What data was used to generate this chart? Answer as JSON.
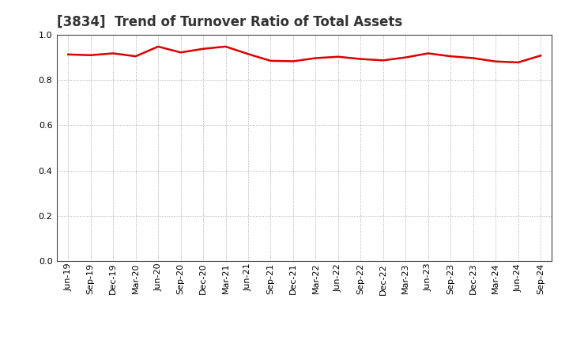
{
  "title": "[3834]  Trend of Turnover Ratio of Total Assets",
  "labels": [
    "Jun-19",
    "Sep-19",
    "Dec-19",
    "Mar-20",
    "Jun-20",
    "Sep-20",
    "Dec-20",
    "Mar-21",
    "Jun-21",
    "Sep-21",
    "Dec-21",
    "Mar-22",
    "Jun-22",
    "Sep-22",
    "Dec-22",
    "Mar-23",
    "Jun-23",
    "Sep-23",
    "Dec-23",
    "Mar-24",
    "Jun-24",
    "Sep-24"
  ],
  "values": [
    0.913,
    0.91,
    0.918,
    0.905,
    0.948,
    0.922,
    0.938,
    0.948,
    0.915,
    0.885,
    0.883,
    0.897,
    0.903,
    0.893,
    0.887,
    0.9,
    0.918,
    0.905,
    0.897,
    0.882,
    0.878,
    0.908
  ],
  "line_color": "#dd0000",
  "line_width": 1.8,
  "ylim": [
    0.0,
    1.0
  ],
  "yticks": [
    0.0,
    0.2,
    0.4,
    0.6,
    0.8,
    1.0
  ],
  "grid_color": "#999999",
  "plot_bg_color": "#ffffff",
  "fig_bg_color": "#ffffff",
  "title_fontsize": 12,
  "tick_fontsize": 8,
  "title_color": "#333333"
}
